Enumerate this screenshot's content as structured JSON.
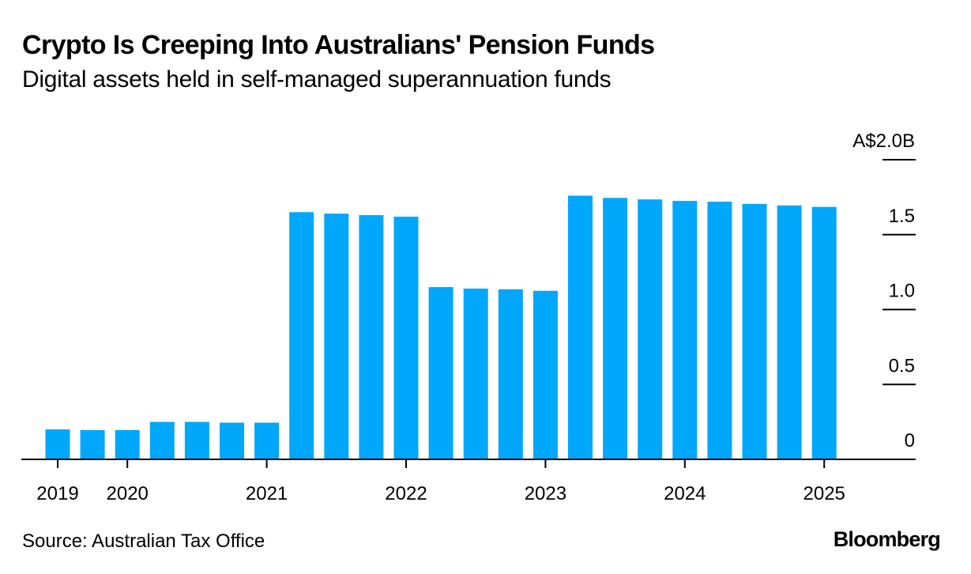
{
  "header": {
    "title": "Crypto Is Creeping Into Australians' Pension Funds",
    "subtitle": "Digital assets held in self-managed superannuation funds"
  },
  "footer": {
    "source": "Source: Australian Tax Office",
    "brand": "Bloomberg"
  },
  "chart_data": {
    "type": "bar",
    "title": "Crypto Is Creeping Into Australians' Pension Funds",
    "subtitle": "Digital assets held in self-managed superannuation funds",
    "unit": "A$ billions",
    "x_tick_labels": [
      "2019",
      "2020",
      "2021",
      "2022",
      "2023",
      "2024",
      "2025"
    ],
    "y_tick_labels": [
      "0",
      "0.5",
      "1.0",
      "1.5",
      "A$2.0B"
    ],
    "y_ticks": [
      0,
      0.5,
      1.0,
      1.5,
      2.0
    ],
    "ylim": [
      0,
      2.0
    ],
    "y_axis_position": "right",
    "grid": false,
    "legend": "none",
    "bar_color": "#00a7fa",
    "values": [
      0.2,
      0.195,
      0.195,
      0.25,
      0.25,
      0.245,
      0.245,
      1.65,
      1.64,
      1.63,
      1.62,
      1.15,
      1.14,
      1.135,
      1.125,
      1.76,
      1.745,
      1.735,
      1.725,
      1.72,
      1.705,
      1.695,
      1.685
    ],
    "x_tick_bar_index": [
      0,
      2,
      6,
      10,
      14,
      18,
      22
    ]
  }
}
